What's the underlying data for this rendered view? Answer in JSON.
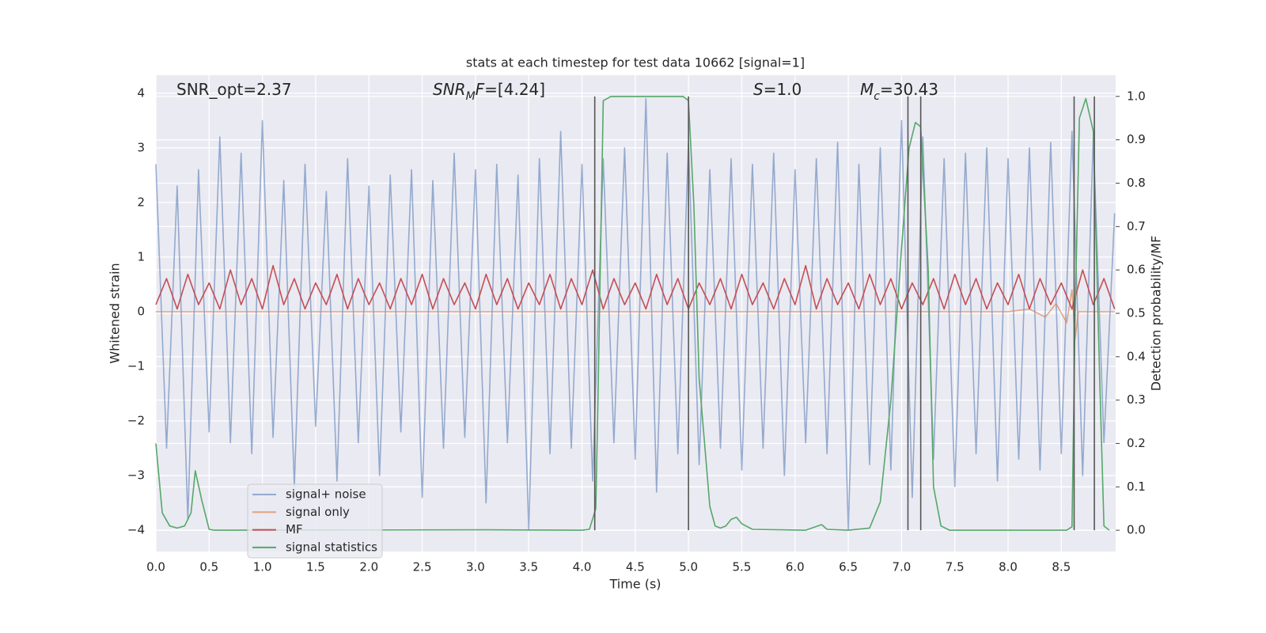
{
  "chart_data": {
    "type": "line",
    "title": "stats at each timestep for test data 10662 [signal=1]",
    "xlabel": "Time (s)",
    "ylabel": "Whitened strain",
    "y2label": "Detection probability/MF",
    "xlim": [
      0,
      9.01
    ],
    "ylim": [
      -4.39,
      4.33
    ],
    "y2lim": [
      -0.049,
      1.049
    ],
    "grid": true,
    "legend": "lower left",
    "xticks": [
      {
        "value": 0,
        "label": "0.0"
      },
      0.5,
      {
        "value": 1,
        "label": "1.0"
      },
      1.5,
      {
        "value": 2,
        "label": "2.0"
      },
      2.5,
      {
        "value": 3,
        "label": "3.0"
      },
      3.5,
      {
        "value": 4,
        "label": "4.0"
      },
      4.5,
      {
        "value": 5,
        "label": "5.0"
      },
      5.5,
      {
        "value": 6,
        "label": "6.0"
      },
      6.5,
      {
        "value": 7,
        "label": "7.0"
      },
      7.5,
      {
        "value": 8,
        "label": "8.0"
      },
      8.5
    ],
    "yticks": [
      {
        "value": -4,
        "label": "−4"
      },
      {
        "value": -3,
        "label": "−3"
      },
      {
        "value": -2,
        "label": "−2"
      },
      {
        "value": -1,
        "label": "−1"
      },
      0,
      1,
      2,
      3,
      4
    ],
    "y2ticks": [
      {
        "value": 0,
        "label": "0.0"
      },
      0.1,
      0.2,
      0.3,
      0.4,
      0.5,
      0.6,
      0.7,
      0.8,
      0.9,
      {
        "value": 1,
        "label": "1.0"
      }
    ],
    "annotations": [
      {
        "parts": [
          {
            "text": "SNR_opt=2.37",
            "style": "normal"
          }
        ]
      },
      {
        "parts": [
          {
            "text": "SNR",
            "style": "italic"
          },
          {
            "text": "M",
            "style": "sub"
          },
          {
            "text": "F",
            "style": "italic"
          },
          {
            "text": "=[4.24]",
            "style": "normal"
          }
        ]
      },
      {
        "parts": [
          {
            "text": "S",
            "style": "italic"
          },
          {
            "text": "=1.0",
            "style": "normal"
          }
        ]
      },
      {
        "parts": [
          {
            "text": "M",
            "style": "italic"
          },
          {
            "text": "c",
            "style": "sub"
          },
          {
            "text": "=30.43",
            "style": "normal"
          }
        ]
      }
    ],
    "vlines": {
      "x": [
        4.12,
        5.0,
        7.06,
        7.18,
        8.62,
        8.81
      ],
      "ymin": 0,
      "ymax": 1,
      "color": "#555555"
    },
    "series": [
      {
        "name": "signal+ noise",
        "color": "#4c72b0",
        "opacity": 0.55,
        "x": [
          0,
          0.1,
          0.2,
          0.3,
          0.4,
          0.5,
          0.6,
          0.7,
          0.8,
          0.9,
          1,
          1.1,
          1.2,
          1.3,
          1.4,
          1.5,
          1.6,
          1.7,
          1.8,
          1.9,
          2,
          2.1,
          2.2,
          2.3,
          2.4,
          2.5,
          2.6,
          2.7,
          2.8,
          2.9,
          3,
          3.1,
          3.2,
          3.3,
          3.4,
          3.5,
          3.6,
          3.7,
          3.8,
          3.9,
          4,
          4.1,
          4.2,
          4.3,
          4.4,
          4.5,
          4.6,
          4.7,
          4.8,
          4.9,
          5,
          5.1,
          5.2,
          5.3,
          5.4,
          5.5,
          5.6,
          5.7,
          5.8,
          5.9,
          6,
          6.1,
          6.2,
          6.3,
          6.4,
          6.5,
          6.6,
          6.7,
          6.8,
          6.9,
          7,
          7.1,
          7.2,
          7.3,
          7.4,
          7.5,
          7.6,
          7.7,
          7.8,
          7.9,
          8,
          8.1,
          8.2,
          8.3,
          8.4,
          8.5,
          8.6,
          8.7,
          8.8,
          8.9,
          9
        ],
        "values": [
          2.7,
          -2.5,
          2.3,
          -3.8,
          2.6,
          -2.2,
          3.2,
          -2.4,
          2.9,
          -2.6,
          3.5,
          -2.3,
          2.4,
          -3.2,
          2.7,
          -2.1,
          2.2,
          -3.1,
          2.8,
          -2.4,
          2.3,
          -3.0,
          2.5,
          -2.2,
          2.6,
          -3.4,
          2.4,
          -2.5,
          2.9,
          -2.3,
          2.6,
          -3.5,
          2.7,
          -2.4,
          2.5,
          -4.0,
          2.8,
          -2.6,
          3.3,
          -2.5,
          2.7,
          -3.1,
          2.8,
          -2.4,
          3.0,
          -2.7,
          3.9,
          -3.3,
          2.9,
          -2.6,
          3.1,
          -2.8,
          2.6,
          -2.5,
          2.8,
          -2.9,
          2.7,
          -2.5,
          2.9,
          -3.0,
          2.6,
          -2.4,
          2.8,
          -2.6,
          3.1,
          -4.0,
          2.7,
          -2.8,
          3.0,
          -2.9,
          3.5,
          -3.4,
          3.2,
          -2.7,
          2.8,
          -3.2,
          2.9,
          -2.6,
          3.0,
          -3.1,
          2.8,
          -2.7,
          3.0,
          -2.9,
          3.1,
          -2.6,
          3.3,
          -3.0,
          3.2,
          -2.4,
          1.8
        ]
      },
      {
        "name": "signal only",
        "color": "#dd8452",
        "opacity": 0.7,
        "x": [
          0,
          8.0,
          8.2,
          8.35,
          8.45,
          8.55,
          8.6,
          8.63,
          8.66,
          9.0
        ],
        "values": [
          0,
          0,
          0.05,
          -0.1,
          0.15,
          -0.2,
          0.4,
          -0.5,
          0,
          0
        ]
      },
      {
        "name": "MF",
        "color": "#c44e52",
        "opacity": 1,
        "axis": "y2",
        "x": [
          0,
          0.1,
          0.2,
          0.3,
          0.4,
          0.5,
          0.6,
          0.7,
          0.8,
          0.9,
          1,
          1.1,
          1.2,
          1.3,
          1.4,
          1.5,
          1.6,
          1.7,
          1.8,
          1.9,
          2,
          2.1,
          2.2,
          2.3,
          2.4,
          2.5,
          2.6,
          2.7,
          2.8,
          2.9,
          3,
          3.1,
          3.2,
          3.3,
          3.4,
          3.5,
          3.6,
          3.7,
          3.8,
          3.9,
          4,
          4.1,
          4.2,
          4.3,
          4.4,
          4.5,
          4.6,
          4.7,
          4.8,
          4.9,
          5,
          5.1,
          5.2,
          5.3,
          5.4,
          5.5,
          5.6,
          5.7,
          5.8,
          5.9,
          6,
          6.1,
          6.2,
          6.3,
          6.4,
          6.5,
          6.6,
          6.7,
          6.8,
          6.9,
          7,
          7.1,
          7.2,
          7.3,
          7.4,
          7.5,
          7.6,
          7.7,
          7.8,
          7.9,
          8,
          8.1,
          8.2,
          8.3,
          8.4,
          8.5,
          8.6,
          8.7,
          8.8,
          8.9,
          9
        ],
        "values": [
          0.52,
          0.58,
          0.51,
          0.59,
          0.52,
          0.57,
          0.51,
          0.6,
          0.52,
          0.58,
          0.51,
          0.61,
          0.52,
          0.58,
          0.51,
          0.57,
          0.52,
          0.59,
          0.51,
          0.58,
          0.52,
          0.57,
          0.51,
          0.58,
          0.52,
          0.59,
          0.51,
          0.58,
          0.52,
          0.57,
          0.51,
          0.59,
          0.52,
          0.58,
          0.51,
          0.57,
          0.52,
          0.59,
          0.51,
          0.58,
          0.52,
          0.6,
          0.51,
          0.58,
          0.52,
          0.57,
          0.51,
          0.59,
          0.52,
          0.58,
          0.51,
          0.57,
          0.52,
          0.58,
          0.51,
          0.59,
          0.52,
          0.57,
          0.51,
          0.58,
          0.52,
          0.61,
          0.51,
          0.58,
          0.52,
          0.57,
          0.51,
          0.59,
          0.52,
          0.58,
          0.51,
          0.57,
          0.52,
          0.58,
          0.51,
          0.59,
          0.52,
          0.58,
          0.51,
          0.57,
          0.52,
          0.59,
          0.51,
          0.58,
          0.52,
          0.57,
          0.51,
          0.6,
          0.52,
          0.58,
          0.51
        ]
      },
      {
        "name": "signal statistics",
        "color": "#55a868",
        "opacity": 1,
        "axis": "y2",
        "x": [
          0,
          0.06,
          0.13,
          0.2,
          0.27,
          0.33,
          0.37,
          0.43,
          0.5,
          0.55,
          3.1,
          4.0,
          4.07,
          4.13,
          4.15,
          4.2,
          4.27,
          4.95,
          5.0,
          5.05,
          5.1,
          5.2,
          5.25,
          5.3,
          5.35,
          5.4,
          5.45,
          5.5,
          5.6,
          6.1,
          6.25,
          6.3,
          6.5,
          6.7,
          6.8,
          6.9,
          7.0,
          7.07,
          7.13,
          7.18,
          7.25,
          7.3,
          7.37,
          7.45,
          8.55,
          8.6,
          8.63,
          8.67,
          8.73,
          8.8,
          8.86,
          8.9,
          8.95
        ],
        "values": [
          0.2,
          0.04,
          0.01,
          0.005,
          0.01,
          0.04,
          0.137,
          0.07,
          0.002,
          0,
          0.001,
          0,
          0.002,
          0.05,
          0.3,
          0.99,
          1.0,
          1.0,
          0.99,
          0.75,
          0.35,
          0.055,
          0.01,
          0.005,
          0.01,
          0.025,
          0.03,
          0.015,
          0.002,
          0,
          0.013,
          0.002,
          0,
          0.005,
          0.065,
          0.3,
          0.65,
          0.88,
          0.94,
          0.93,
          0.6,
          0.1,
          0.01,
          0,
          0,
          0.008,
          0.5,
          0.95,
          0.995,
          0.92,
          0.35,
          0.01,
          0
        ]
      }
    ]
  }
}
